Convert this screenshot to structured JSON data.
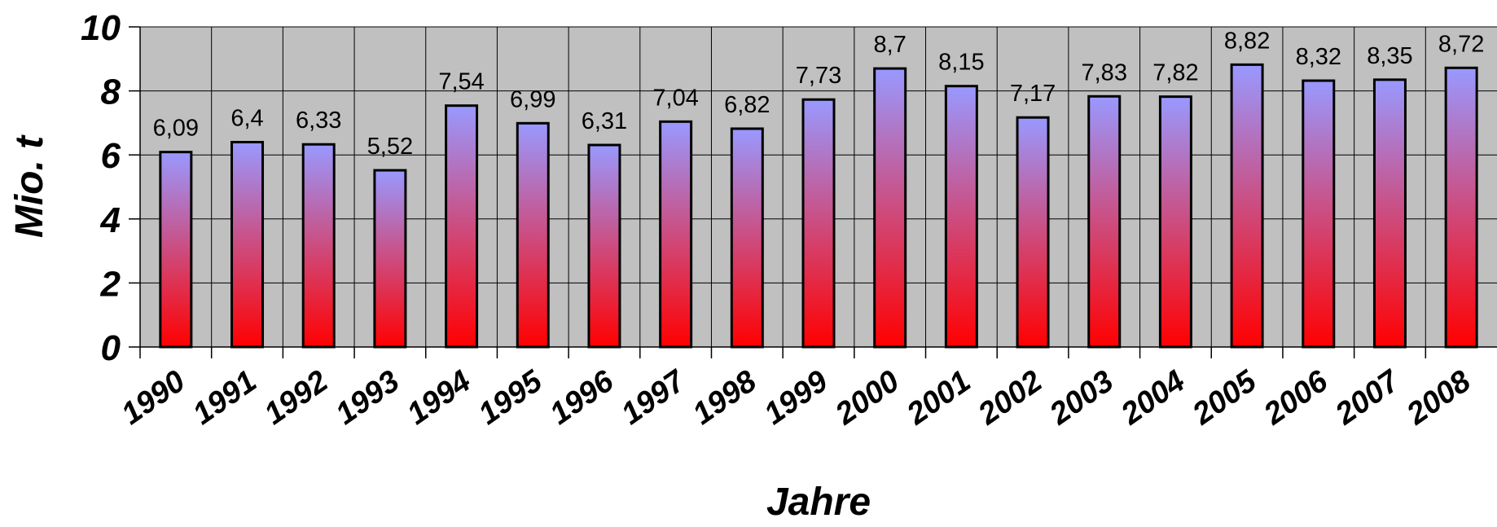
{
  "chart_data": {
    "type": "bar",
    "categories": [
      "1990",
      "1991",
      "1992",
      "1993",
      "1994",
      "1995",
      "1996",
      "1997",
      "1998",
      "1999",
      "2000",
      "2001",
      "2002",
      "2003",
      "2004",
      "2005",
      "2006",
      "2007",
      "2008"
    ],
    "values": [
      6.09,
      6.4,
      6.33,
      5.52,
      7.54,
      6.99,
      6.31,
      7.04,
      6.82,
      7.73,
      8.7,
      8.15,
      7.17,
      7.83,
      7.82,
      8.82,
      8.32,
      8.35,
      8.72
    ],
    "data_labels": [
      "6,09",
      "6,4",
      "6,33",
      "5,52",
      "7,54",
      "6,99",
      "6,31",
      "7,04",
      "6,82",
      "7,73",
      "8,7",
      "8,15",
      "7,17",
      "7,83",
      "7,82",
      "8,82",
      "8,32",
      "8,35",
      "8,72"
    ],
    "xlabel": "Jahre",
    "ylabel": "Mio. t",
    "ylim": [
      0,
      10
    ],
    "yticks": [
      "0",
      "2",
      "4",
      "6",
      "8",
      "10"
    ],
    "grid": true,
    "legend": "none",
    "colors": {
      "plot_background": "#c0c0c0",
      "bar_top": "#9999ff",
      "bar_bottom": "#ff0000",
      "bar_outline": "#000000",
      "gridline": "#000000"
    }
  }
}
